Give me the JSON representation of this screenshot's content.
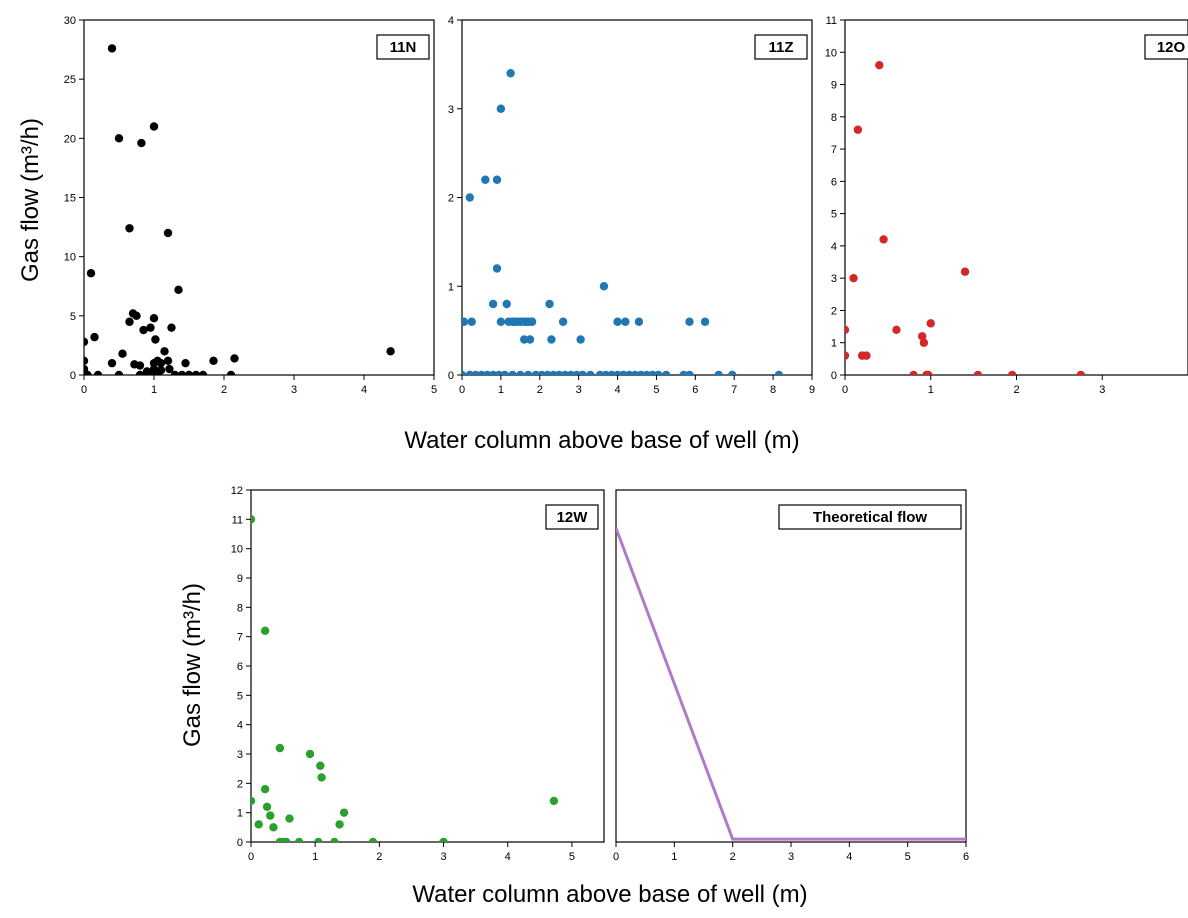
{
  "figure": {
    "top_xlabel": "Water column above base of well (m)",
    "bottom_xlabel": "Water column above base of well (m)",
    "top_ylabel": "Gas flow (m³/h)",
    "bottom_ylabel": "Gas flow (m³/h)"
  },
  "chart_data": [
    {
      "type": "scatter",
      "panel": "11N",
      "color": "#000000",
      "xlim": [
        0,
        5
      ],
      "ylim": [
        0,
        30
      ],
      "xticks": [
        0,
        1,
        2,
        3,
        4,
        5
      ],
      "yticks": [
        0,
        5,
        10,
        15,
        20,
        25,
        30
      ],
      "x": [
        0.0,
        0.0,
        0.0,
        0.02,
        0.05,
        0.1,
        0.15,
        0.2,
        0.4,
        0.5,
        0.55,
        0.65,
        0.7,
        0.72,
        0.75,
        0.8,
        0.8,
        0.85,
        0.9,
        0.9,
        0.95,
        1.0,
        1.0,
        1.0,
        1.0,
        1.02,
        1.05,
        1.05,
        1.1,
        1.1,
        1.15,
        1.2,
        1.22,
        1.25,
        1.3,
        1.35,
        1.4,
        1.45,
        1.5,
        1.6,
        1.7,
        1.85,
        2.1,
        2.15,
        0.4,
        0.5,
        0.82,
        1.0,
        0.65,
        1.2,
        4.38
      ],
      "y": [
        2.8,
        1.2,
        0.5,
        0.0,
        0.0,
        8.6,
        3.2,
        0.0,
        1.0,
        0.0,
        1.8,
        4.5,
        5.2,
        0.9,
        5.0,
        0.8,
        0.0,
        3.8,
        0.3,
        0.0,
        4.0,
        4.8,
        0.5,
        1.0,
        0.0,
        3.0,
        1.2,
        0.0,
        0.4,
        1.0,
        2.0,
        1.2,
        0.5,
        4.0,
        0.0,
        7.2,
        0.0,
        1.0,
        0.0,
        0.0,
        0.0,
        1.2,
        0.0,
        1.4,
        27.6,
        20.0,
        19.6,
        21.0,
        12.4,
        12.0,
        2.0
      ]
    },
    {
      "type": "scatter",
      "panel": "11Z",
      "color": "#1f77b4",
      "xlim": [
        0,
        9
      ],
      "ylim": [
        0,
        4
      ],
      "xticks": [
        0,
        1,
        2,
        3,
        4,
        5,
        6,
        7,
        8,
        9
      ],
      "yticks": [
        0,
        1,
        2,
        3,
        4
      ],
      "x": [
        0.0,
        0.2,
        0.6,
        0.8,
        0.9,
        0.9,
        1.0,
        1.0,
        1.15,
        1.25,
        1.3,
        1.4,
        1.5,
        1.6,
        1.7,
        1.75,
        1.65,
        1.8,
        2.25,
        2.3,
        2.6,
        3.05,
        3.65,
        4.0,
        4.2,
        4.55,
        5.85,
        6.25,
        0.05,
        0.25,
        1.2,
        1.35,
        1.5,
        1.6,
        1.7,
        1.8,
        0.0,
        0.2,
        0.35,
        0.5,
        0.65,
        0.8,
        0.95,
        1.1,
        1.3,
        1.5,
        1.7,
        1.9,
        2.05,
        2.2,
        2.35,
        2.5,
        2.65,
        2.8,
        2.95,
        3.1,
        3.3,
        3.55,
        3.7,
        3.85,
        4.0,
        4.15,
        4.3,
        4.45,
        4.6,
        4.75,
        4.9,
        5.05,
        5.25,
        5.7,
        5.85,
        6.6,
        6.95,
        8.15
      ],
      "y": [
        0.6,
        2.0,
        2.2,
        0.8,
        1.2,
        2.2,
        3.0,
        0.6,
        0.8,
        3.4,
        0.6,
        0.6,
        0.6,
        0.4,
        0.6,
        0.4,
        0.6,
        0.6,
        0.8,
        0.4,
        0.6,
        0.4,
        1.0,
        0.6,
        0.6,
        0.6,
        0.6,
        0.6,
        0.6,
        0.6,
        0.6,
        0.6,
        0.6,
        0.6,
        0.6,
        0.6,
        0.0,
        0.0,
        0.0,
        0.0,
        0.0,
        0.0,
        0.0,
        0.0,
        0.0,
        0.0,
        0.0,
        0.0,
        0.0,
        0.0,
        0.0,
        0.0,
        0.0,
        0.0,
        0.0,
        0.0,
        0.0,
        0.0,
        0.0,
        0.0,
        0.0,
        0.0,
        0.0,
        0.0,
        0.0,
        0.0,
        0.0,
        0.0,
        0.0,
        0.0,
        0.0,
        0.0,
        0.0,
        0.0
      ]
    },
    {
      "type": "scatter",
      "panel": "12O",
      "color": "#d62728",
      "xlim": [
        0,
        4
      ],
      "ylim": [
        0,
        11
      ],
      "xticks": [
        0,
        1,
        2,
        3
      ],
      "yticks": [
        0,
        1,
        2,
        3,
        4,
        5,
        6,
        7,
        8,
        9,
        10,
        11
      ],
      "x": [
        0.0,
        0.0,
        0.1,
        0.15,
        0.2,
        0.25,
        0.4,
        0.45,
        0.6,
        0.8,
        0.9,
        0.92,
        0.95,
        1.0,
        0.97,
        1.4,
        1.55,
        1.95,
        2.75
      ],
      "y": [
        1.4,
        0.6,
        3.0,
        7.6,
        0.6,
        0.6,
        9.6,
        4.2,
        1.4,
        0.0,
        1.2,
        1.0,
        0.0,
        1.6,
        0.0,
        3.2,
        0.0,
        0.0,
        0.0
      ]
    },
    {
      "type": "scatter",
      "panel": "12W",
      "color": "#2ca02c",
      "xlim": [
        0,
        5.5
      ],
      "ylim": [
        0,
        12
      ],
      "xticks": [
        0,
        1,
        2,
        3,
        4,
        5
      ],
      "yticks": [
        0,
        1,
        2,
        3,
        4,
        5,
        6,
        7,
        8,
        9,
        10,
        11,
        12
      ],
      "x": [
        0.0,
        0.0,
        0.12,
        0.22,
        0.22,
        0.25,
        0.3,
        0.35,
        0.45,
        0.45,
        0.5,
        0.55,
        0.6,
        0.75,
        0.92,
        1.05,
        1.08,
        1.1,
        1.3,
        1.38,
        1.45,
        1.9,
        3.0,
        4.72
      ],
      "y": [
        11.0,
        1.4,
        0.6,
        7.2,
        1.8,
        1.2,
        0.9,
        0.5,
        3.2,
        0.0,
        0.0,
        0.0,
        0.8,
        0.0,
        3.0,
        0.0,
        2.6,
        2.2,
        0.0,
        0.6,
        1.0,
        0.0,
        0.0,
        1.4
      ]
    },
    {
      "type": "line",
      "panel": "Theoretical flow",
      "color": "#b07cc6",
      "xlim": [
        0,
        6
      ],
      "ylim": [
        0,
        12
      ],
      "xticks": [
        0,
        1,
        2,
        3,
        4,
        5,
        6
      ],
      "yticks": [],
      "x": [
        0,
        2,
        6
      ],
      "y": [
        10.7,
        0.1,
        0.1
      ]
    }
  ]
}
